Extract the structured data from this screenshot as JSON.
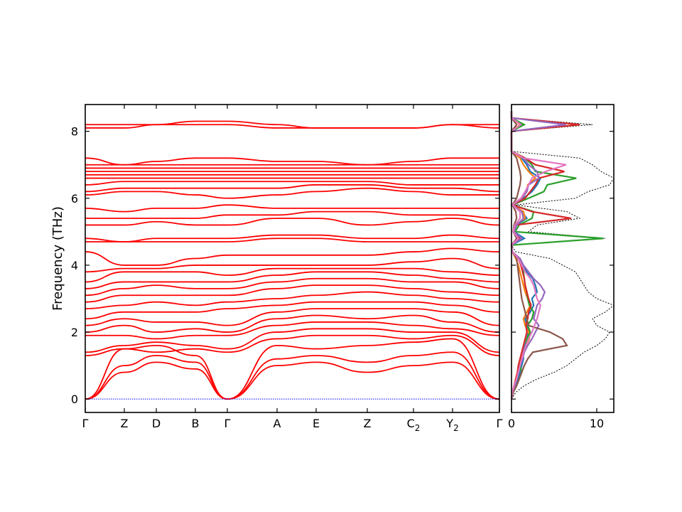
{
  "chart_data": [
    {
      "type": "line",
      "subtype": "phonon-band-structure",
      "ylabel": "Frequency (THz)",
      "ylim": [
        -0.4,
        8.8
      ],
      "yticks": [
        0,
        2,
        4,
        6,
        8
      ],
      "xticks": [
        {
          "label": "Γ",
          "sub": ""
        },
        {
          "label": "Z",
          "sub": ""
        },
        {
          "label": "D",
          "sub": ""
        },
        {
          "label": "B",
          "sub": ""
        },
        {
          "label": "Γ",
          "sub": ""
        },
        {
          "label": "A",
          "sub": ""
        },
        {
          "label": "E",
          "sub": ""
        },
        {
          "label": "Z",
          "sub": ""
        },
        {
          "label": "C",
          "sub": "2"
        },
        {
          "label": "Y",
          "sub": "2"
        },
        {
          "label": "Γ",
          "sub": ""
        }
      ],
      "band_color": "#ff0000",
      "zero_line_color": "#0000ff",
      "bands_at_kpoints": [
        [
          0,
          0.8,
          1.1,
          0.9,
          0,
          1.0,
          1.1,
          0.8,
          1.0,
          1.1,
          0
        ],
        [
          0,
          1.0,
          1.3,
          1.1,
          0,
          1.2,
          1.3,
          1.1,
          1.3,
          1.4,
          0
        ],
        [
          0,
          1.5,
          1.6,
          1.3,
          0,
          1.6,
          1.5,
          1.6,
          1.7,
          1.8,
          0
        ],
        [
          1.3,
          1.5,
          1.4,
          1.5,
          1.4,
          1.8,
          1.9,
          1.9,
          1.8,
          1.9,
          1.3
        ],
        [
          1.4,
          1.6,
          1.7,
          1.6,
          1.5,
          2.0,
          2.1,
          2.1,
          2.0,
          2.0,
          1.4
        ],
        [
          1.9,
          1.9,
          1.8,
          1.9,
          1.9,
          2.2,
          2.3,
          2.3,
          2.2,
          2.1,
          1.9
        ],
        [
          2.0,
          2.2,
          2.0,
          2.1,
          2.0,
          2.4,
          2.5,
          2.4,
          2.5,
          2.3,
          2.0
        ],
        [
          2.2,
          2.4,
          2.3,
          2.3,
          2.2,
          2.6,
          2.7,
          2.7,
          2.7,
          2.6,
          2.2
        ],
        [
          2.4,
          2.6,
          2.6,
          2.6,
          2.7,
          2.8,
          2.9,
          2.9,
          2.9,
          2.8,
          2.6
        ],
        [
          2.7,
          2.8,
          2.9,
          2.8,
          2.9,
          3.0,
          3.1,
          3.2,
          3.1,
          3.0,
          2.9
        ],
        [
          2.9,
          3.1,
          3.1,
          3.1,
          3.1,
          3.3,
          3.4,
          3.4,
          3.3,
          3.2,
          3.1
        ],
        [
          3.1,
          3.3,
          3.4,
          3.3,
          3.3,
          3.5,
          3.6,
          3.6,
          3.5,
          3.5,
          3.3
        ],
        [
          3.3,
          3.5,
          3.5,
          3.5,
          3.5,
          3.7,
          3.8,
          3.8,
          3.7,
          3.6,
          3.5
        ],
        [
          3.5,
          3.8,
          3.8,
          3.8,
          3.7,
          3.9,
          3.9,
          3.9,
          3.9,
          3.8,
          3.7
        ],
        [
          3.8,
          3.9,
          3.9,
          4.0,
          4.0,
          4.0,
          4.0,
          4.0,
          4.1,
          4.2,
          3.9
        ],
        [
          4.4,
          4.0,
          4.0,
          4.2,
          4.3,
          4.3,
          4.3,
          4.3,
          4.4,
          4.5,
          4.4
        ],
        [
          4.7,
          4.7,
          4.7,
          4.7,
          4.7,
          4.8,
          4.8,
          4.7,
          4.7,
          4.7,
          4.7
        ],
        [
          4.8,
          4.7,
          4.8,
          4.8,
          4.8,
          4.9,
          4.9,
          4.8,
          4.8,
          4.9,
          4.8
        ],
        [
          5.2,
          5.2,
          5.3,
          5.2,
          5.2,
          5.4,
          5.4,
          5.2,
          5.3,
          5.4,
          5.2
        ],
        [
          5.4,
          5.4,
          5.4,
          5.4,
          5.5,
          5.5,
          5.6,
          5.6,
          5.5,
          5.5,
          5.4
        ],
        [
          5.7,
          5.6,
          5.7,
          5.7,
          5.8,
          5.7,
          5.7,
          5.7,
          5.7,
          5.7,
          5.7
        ],
        [
          6.1,
          6.2,
          6.2,
          6.1,
          6.0,
          6.1,
          6.2,
          6.3,
          6.2,
          6.1,
          6.1
        ],
        [
          6.2,
          6.3,
          6.3,
          6.3,
          6.3,
          6.3,
          6.4,
          6.4,
          6.3,
          6.3,
          6.2
        ],
        [
          6.4,
          6.5,
          6.5,
          6.5,
          6.5,
          6.5,
          6.5,
          6.5,
          6.4,
          6.4,
          6.4
        ],
        [
          6.6,
          6.6,
          6.6,
          6.6,
          6.6,
          6.6,
          6.6,
          6.6,
          6.6,
          6.6,
          6.6
        ],
        [
          6.7,
          6.7,
          6.7,
          6.7,
          6.7,
          6.7,
          6.7,
          6.7,
          6.7,
          6.7,
          6.7
        ],
        [
          6.8,
          6.8,
          6.8,
          6.8,
          6.8,
          6.8,
          6.8,
          6.8,
          6.8,
          6.8,
          6.8
        ],
        [
          6.9,
          6.9,
          6.9,
          6.9,
          6.9,
          6.9,
          6.9,
          6.9,
          6.9,
          6.9,
          6.9
        ],
        [
          7.0,
          7.0,
          7.0,
          7.0,
          7.0,
          7.0,
          7.0,
          7.0,
          7.0,
          7.0,
          7.0
        ],
        [
          7.2,
          7.0,
          7.1,
          7.2,
          7.2,
          7.1,
          7.1,
          7.0,
          7.1,
          7.2,
          7.2
        ],
        [
          8.1,
          8.1,
          8.2,
          8.2,
          8.2,
          8.1,
          8.1,
          8.1,
          8.1,
          8.2,
          8.1
        ],
        [
          8.2,
          8.2,
          8.2,
          8.3,
          8.3,
          8.2,
          8.1,
          8.1,
          8.1,
          8.2,
          8.2
        ]
      ]
    },
    {
      "type": "line",
      "subtype": "phonon-dos",
      "xlim": [
        0,
        12
      ],
      "xticks": [
        0,
        10
      ],
      "ylim": [
        -0.4,
        8.8
      ],
      "total_color": "#000000",
      "frequency": [
        0,
        0.2,
        0.4,
        0.6,
        0.8,
        1.0,
        1.2,
        1.4,
        1.6,
        1.8,
        2.0,
        2.2,
        2.4,
        2.6,
        2.8,
        3.0,
        3.2,
        3.4,
        3.6,
        3.8,
        4.0,
        4.2,
        4.4,
        4.6,
        4.8,
        5.0,
        5.2,
        5.4,
        5.6,
        5.8,
        6.0,
        6.2,
        6.4,
        6.6,
        6.8,
        7.0,
        7.2,
        7.4,
        7.6,
        7.8,
        8.0,
        8.2,
        8.4,
        8.6
      ],
      "total": [
        0,
        0.5,
        1.5,
        3.0,
        5.0,
        6.5,
        7.5,
        8.5,
        10.0,
        11.0,
        11.5,
        10.0,
        9.5,
        11.0,
        12.0,
        10.0,
        9.0,
        8.5,
        8.0,
        7.5,
        6.0,
        4.5,
        0.5,
        0,
        11.0,
        2.0,
        3.0,
        8.0,
        6.5,
        0.5,
        7.5,
        9.0,
        11.5,
        12.0,
        10.5,
        9.5,
        8.0,
        0,
        0,
        0,
        0,
        9.5,
        0,
        0
      ],
      "series": [
        {
          "color": "#1f77b4",
          "values": [
            0,
            0.2,
            0.5,
            0.8,
            1.0,
            1.2,
            1.4,
            1.3,
            1.6,
            1.8,
            2.0,
            1.8,
            1.6,
            2.2,
            2.6,
            2.4,
            3.0,
            2.8,
            2.5,
            1.8,
            1.2,
            0.8,
            0.1,
            0,
            1.5,
            0.3,
            0.6,
            1.8,
            1.2,
            0.1,
            1.4,
            2.4,
            3.0,
            3.4,
            2.2,
            1.8,
            1.2,
            0,
            0,
            0,
            0,
            1.4,
            0,
            0
          ]
        },
        {
          "color": "#ff7f0e",
          "values": [
            0,
            0.1,
            0.3,
            0.5,
            0.7,
            0.9,
            1.1,
            1.4,
            1.7,
            2.1,
            2.0,
            1.6,
            1.4,
            1.8,
            2.2,
            1.9,
            1.6,
            1.4,
            1.2,
            1.0,
            0.8,
            0.5,
            0.1,
            0,
            0.9,
            0.2,
            0.4,
            1.6,
            1.4,
            0.1,
            1.2,
            1.8,
            1.9,
            2.8,
            2.0,
            1.4,
            1.0,
            0,
            0,
            0,
            0,
            1.0,
            0,
            0
          ]
        },
        {
          "color": "#2ca02c",
          "values": [
            0,
            0.2,
            0.6,
            0.9,
            1.2,
            1.0,
            1.2,
            1.5,
            1.7,
            1.8,
            2.2,
            1.9,
            2.4,
            2.6,
            2.1,
            1.9,
            1.8,
            1.6,
            1.5,
            1.4,
            1.2,
            0.9,
            0.1,
            0,
            10.8,
            0.4,
            0.9,
            2.4,
            2.6,
            0.1,
            2.0,
            3.8,
            4.2,
            7.6,
            2.8,
            2.4,
            1.6,
            0,
            0,
            0,
            0,
            1.5,
            0,
            0
          ]
        },
        {
          "color": "#d62728",
          "values": [
            0,
            0.1,
            0.3,
            0.5,
            0.7,
            0.8,
            1.0,
            1.2,
            1.4,
            1.6,
            1.8,
            1.7,
            1.9,
            2.0,
            2.3,
            2.0,
            1.8,
            1.6,
            1.5,
            1.3,
            1.1,
            0.8,
            0.1,
            0,
            1.0,
            0.3,
            0.5,
            7.0,
            2.4,
            0.1,
            1.6,
            2.2,
            2.8,
            3.2,
            6.2,
            2.8,
            1.6,
            0,
            0,
            0,
            0,
            8.0,
            0,
            0
          ]
        },
        {
          "color": "#9467bd",
          "values": [
            0,
            0.1,
            0.4,
            0.6,
            0.8,
            1.0,
            1.3,
            1.5,
            1.9,
            2.4,
            2.8,
            3.2,
            2.6,
            2.8,
            3.0,
            3.6,
            3.9,
            3.4,
            2.6,
            2.0,
            1.4,
            1.0,
            0.1,
            0,
            1.2,
            0.3,
            0.6,
            1.4,
            1.2,
            0.1,
            1.2,
            1.8,
            2.0,
            3.2,
            3.0,
            2.0,
            1.4,
            0,
            0,
            0,
            0,
            6.4,
            0,
            0
          ]
        },
        {
          "color": "#8c564b",
          "values": [
            0,
            0.2,
            0.6,
            0.9,
            1.2,
            1.5,
            1.9,
            2.5,
            6.5,
            6.0,
            4.5,
            2.0,
            1.8,
            1.6,
            1.4,
            1.2,
            1.1,
            1.0,
            0.9,
            0.8,
            0.7,
            0.6,
            0.1,
            0,
            0.6,
            0.2,
            0.3,
            0.6,
            0.5,
            0.1,
            0.6,
            0.8,
            1.0,
            1.1,
            1.0,
            0.8,
            0.6,
            0,
            0,
            0,
            0,
            0.6,
            0,
            0
          ]
        },
        {
          "color": "#e377c2",
          "values": [
            0,
            0.1,
            0.3,
            0.6,
            0.8,
            1.0,
            1.2,
            1.4,
            1.7,
            2.0,
            2.4,
            2.7,
            3.0,
            3.2,
            3.4,
            3.0,
            2.8,
            2.6,
            2.2,
            1.6,
            1.2,
            0.8,
            0.1,
            0,
            0.8,
            0.2,
            0.4,
            1.0,
            1.0,
            0.1,
            1.1,
            1.6,
            2.0,
            2.4,
            4.0,
            6.4,
            1.4,
            0,
            0,
            0,
            0,
            1.1,
            0,
            0
          ]
        }
      ]
    }
  ]
}
